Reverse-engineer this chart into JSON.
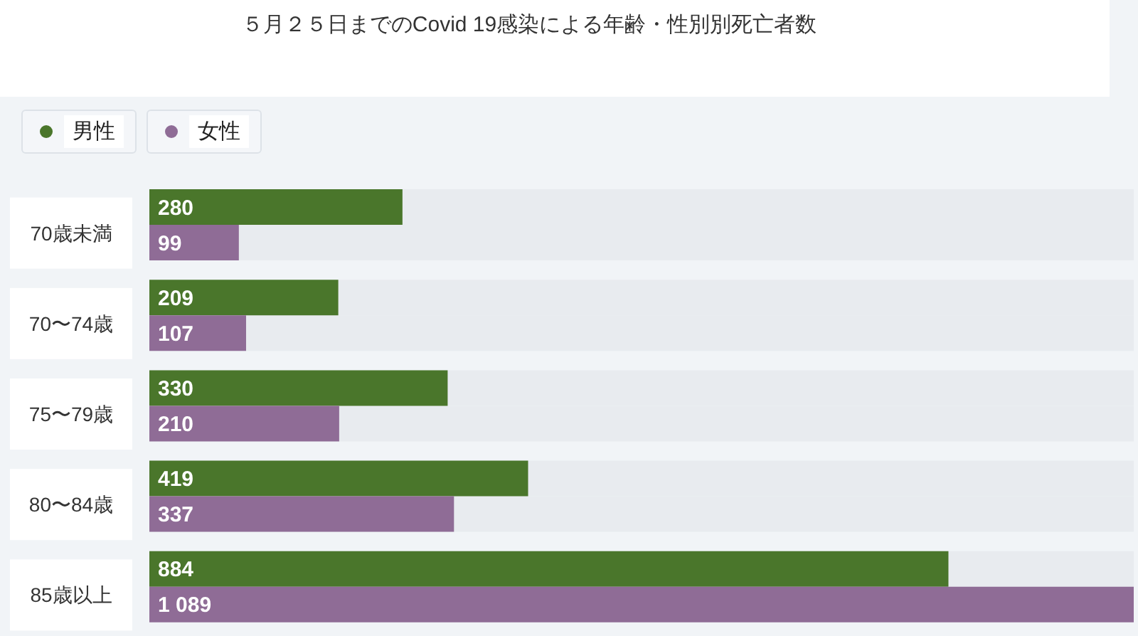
{
  "chart_data": {
    "type": "bar",
    "orientation": "horizontal",
    "title": "５月２５日までのCovid 19感染による年齢・性別別死亡者数",
    "categories": [
      "70歳未満",
      "70〜74歳",
      "75〜79歳",
      "80〜84歳",
      "85歳以上"
    ],
    "series": [
      {
        "name": "男性",
        "color": "#4a762b",
        "values": [
          280,
          209,
          330,
          419,
          884
        ],
        "value_labels": [
          "280",
          "209",
          "330",
          "419",
          "884"
        ]
      },
      {
        "name": "女性",
        "color": "#8f6c96",
        "values": [
          99,
          107,
          210,
          337,
          1089
        ],
        "value_labels": [
          "99",
          "107",
          "210",
          "337",
          "1 089"
        ]
      }
    ],
    "xlim": [
      0,
      1089
    ],
    "tick_labels": "y",
    "legend": "top left"
  }
}
